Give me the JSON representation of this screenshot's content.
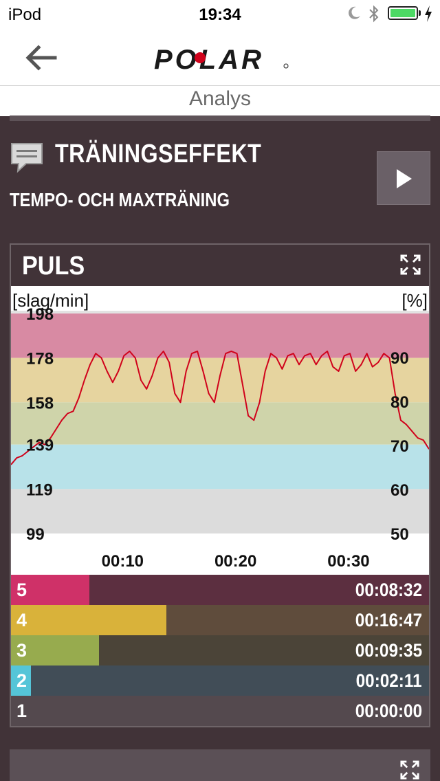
{
  "status_bar": {
    "carrier": "iPod",
    "time": "19:34"
  },
  "header": {
    "brand": "POLAR",
    "subtitle": "Analys"
  },
  "training_effect": {
    "title": "TRÄNINGSEFFEKT",
    "result": "TEMPO- OCH MAXTRÄNING"
  },
  "puls": {
    "title": "PULS",
    "unit_left": "[slag/min]",
    "unit_right": "[%]",
    "zones": [
      {
        "number": "5",
        "time": "00:08:32",
        "fraction": 0.188,
        "fill": "#cf3168",
        "bg": "#5c2f40"
      },
      {
        "number": "4",
        "time": "00:16:47",
        "fraction": 0.371,
        "fill": "#d9b23a",
        "bg": "#5f4c3c"
      },
      {
        "number": "3",
        "time": "00:09:35",
        "fraction": 0.211,
        "fill": "#97ab4e",
        "bg": "#4b4438"
      },
      {
        "number": "2",
        "time": "00:02:11",
        "fraction": 0.048,
        "fill": "#55c5d8",
        "bg": "#414d57"
      },
      {
        "number": "1",
        "time": "00:00:00",
        "fraction": 0.0,
        "fill": "#8d878c",
        "bg": "#54494e"
      }
    ]
  },
  "chart_data": {
    "type": "line",
    "x_unit": "minutes",
    "y_unit": "slag/min",
    "x_ticks": [
      {
        "x": 10,
        "label": "00:10"
      },
      {
        "x": 20,
        "label": "00:20"
      },
      {
        "x": 30,
        "label": "00:30"
      }
    ],
    "ylim": [
      99,
      198
    ],
    "y_ticks_left": [
      "198",
      "178",
      "158",
      "139",
      "119",
      "99"
    ],
    "y_ticks_right": [
      "90",
      "80",
      "70",
      "60",
      "50"
    ],
    "bands": [
      {
        "zone": 5,
        "from": 178,
        "to": 198,
        "color": "#d88aa3"
      },
      {
        "zone": 4,
        "from": 158,
        "to": 178,
        "color": "#e6d49f"
      },
      {
        "zone": 3,
        "from": 139,
        "to": 158,
        "color": "#cfd4aa"
      },
      {
        "zone": 2,
        "from": 119,
        "to": 139,
        "color": "#b8e2e9"
      },
      {
        "zone": 1,
        "from": 99,
        "to": 119,
        "color": "#dcdcdc"
      }
    ],
    "line_color": "#d0021b",
    "series": [
      {
        "x": [
          0,
          0.5,
          1,
          1.5,
          2,
          2.5,
          3,
          3.5,
          4,
          4.5,
          5,
          5.5,
          6,
          6.5,
          7,
          7.5,
          8,
          8.5,
          9,
          9.5,
          10,
          10.5,
          11,
          11.5,
          12,
          12.5,
          13,
          13.5,
          14,
          14.5,
          15,
          15.5,
          16,
          16.5,
          17,
          17.5,
          18,
          18.5,
          19,
          19.5,
          20,
          20.5,
          21,
          21.5,
          22,
          22.5,
          23,
          23.5,
          24,
          24.5,
          25,
          25.5,
          26,
          26.5,
          27,
          27.5,
          28,
          28.5,
          29,
          29.5,
          30,
          30.5,
          31,
          31.5,
          32,
          32.5,
          33,
          33.5,
          34,
          34.5,
          35,
          35.5,
          36,
          36.5,
          37
        ],
        "y": [
          130,
          133,
          134,
          136,
          138,
          140,
          139,
          142,
          146,
          150,
          153,
          154,
          160,
          168,
          175,
          180,
          178,
          172,
          167,
          172,
          179,
          181,
          178,
          168,
          164,
          170,
          178,
          181,
          176,
          162,
          158,
          172,
          180,
          181,
          172,
          162,
          158,
          170,
          180,
          181,
          180,
          166,
          152,
          150,
          158,
          172,
          180,
          178,
          173,
          179,
          180,
          175,
          179,
          180,
          175,
          179,
          181,
          174,
          172,
          179,
          180,
          172,
          175,
          180,
          174,
          176,
          180,
          178,
          162,
          150,
          148,
          145,
          142,
          141,
          137
        ]
      }
    ]
  }
}
